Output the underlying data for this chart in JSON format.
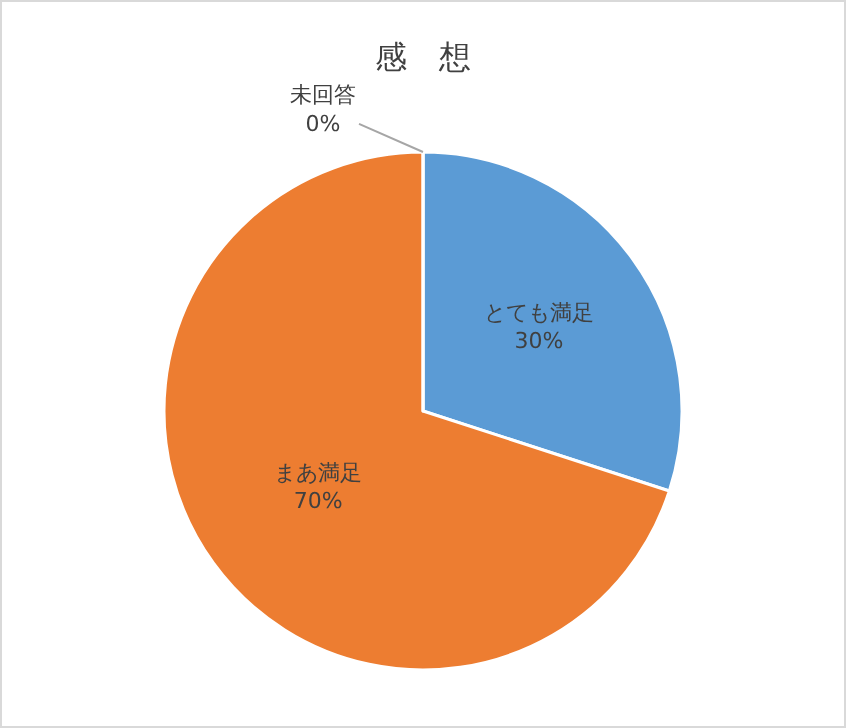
{
  "chart_data": {
    "type": "pie",
    "title": "感　想",
    "categories": [
      "とても満足",
      "まあ満足",
      "未回答"
    ],
    "values": [
      30,
      70,
      0
    ],
    "value_labels": [
      "30%",
      "70%",
      "0%"
    ],
    "colors": [
      "#5b9bd5",
      "#ed7d31",
      "#a5a5a5"
    ],
    "legend": false
  }
}
